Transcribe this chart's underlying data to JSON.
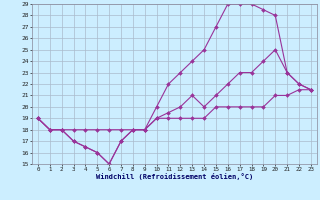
{
  "xlabel": "Windchill (Refroidissement éolien,°C)",
  "bg_color": "#cceeff",
  "grid_color": "#aabbcc",
  "line_color": "#993399",
  "xlim": [
    -0.5,
    23.5
  ],
  "ylim": [
    15,
    29
  ],
  "xticks": [
    0,
    1,
    2,
    3,
    4,
    5,
    6,
    7,
    8,
    9,
    10,
    11,
    12,
    13,
    14,
    15,
    16,
    17,
    18,
    19,
    20,
    21,
    22,
    23
  ],
  "yticks": [
    15,
    16,
    17,
    18,
    19,
    20,
    21,
    22,
    23,
    24,
    25,
    26,
    27,
    28,
    29
  ],
  "series": [
    {
      "x": [
        0,
        1,
        2,
        3,
        4,
        5,
        6,
        7,
        8,
        9,
        10,
        11,
        12,
        13,
        14,
        15,
        16,
        17,
        18,
        19,
        20,
        21,
        22,
        23
      ],
      "y": [
        19,
        18,
        18,
        18,
        18,
        18,
        18,
        18,
        18,
        18,
        19,
        19,
        19,
        19,
        19,
        20,
        20,
        20,
        20,
        20,
        21,
        21,
        21.5,
        21.5
      ]
    },
    {
      "x": [
        0,
        1,
        2,
        3,
        4,
        5,
        6,
        7,
        8,
        9,
        10,
        11,
        12,
        13,
        14,
        15,
        16,
        17,
        18,
        19,
        20,
        21,
        22,
        23
      ],
      "y": [
        19,
        18,
        18,
        17,
        16.5,
        16,
        15,
        17,
        18,
        18,
        19,
        19.5,
        20,
        21,
        20,
        21,
        22,
        23,
        23,
        24,
        25,
        23,
        22,
        21.5
      ]
    },
    {
      "x": [
        0,
        1,
        2,
        3,
        4,
        5,
        6,
        7,
        8,
        9,
        10,
        11,
        12,
        13,
        14,
        15,
        16,
        17,
        18,
        19,
        20,
        21,
        22,
        23
      ],
      "y": [
        19,
        18,
        18,
        17,
        16.5,
        16,
        15,
        17,
        18,
        18,
        20,
        22,
        23,
        24,
        25,
        27,
        29,
        29,
        29,
        28.5,
        28,
        23,
        22,
        21.5
      ]
    }
  ]
}
